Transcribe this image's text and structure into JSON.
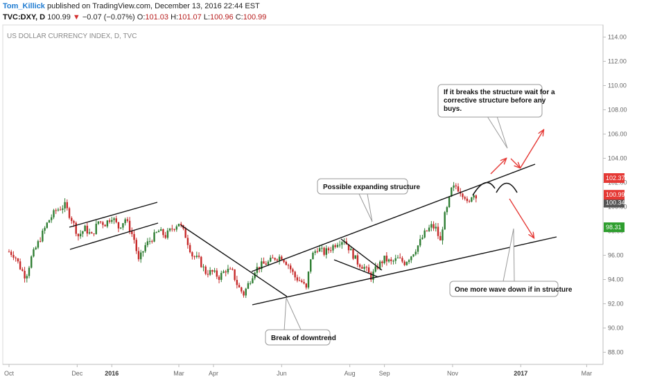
{
  "header": {
    "author": "Tom_Killick",
    "published": "published on TradingView.com, December 13, 2016 22:44 EST",
    "symbol": "TVC:DXY, D",
    "last": "100.99",
    "change_arrow": "▼",
    "change": "−0.07 (−0.07%)",
    "open_label": "O:",
    "open": "101.03",
    "high_label": "H:",
    "high": "101.07",
    "low_label": "L:",
    "low": "100.96",
    "close_label": "C:",
    "close": "100.99"
  },
  "chart_data": {
    "type": "candlestick",
    "title": "US DOLLAR CURRENCY INDEX, D, TVC",
    "ylim": [
      87,
      115
    ],
    "y_ticks": [
      "114.00",
      "112.00",
      "110.00",
      "108.00",
      "106.00",
      "104.00",
      "102.00",
      "100.00",
      "98.00",
      "96.00",
      "94.00",
      "92.00",
      "90.00",
      "88.00"
    ],
    "y_tick_values": [
      114,
      112,
      110,
      108,
      106,
      104,
      102,
      100,
      98,
      96,
      94,
      92,
      90,
      88
    ],
    "x_ticks": [
      {
        "label": "Oct",
        "day": 0
      },
      {
        "label": "Dec",
        "day": 61
      },
      {
        "label": "2016",
        "day": 92,
        "bold": true
      },
      {
        "label": "Mar",
        "day": 152
      },
      {
        "label": "Apr",
        "day": 183
      },
      {
        "label": "Jun",
        "day": 244
      },
      {
        "label": "Aug",
        "day": 305
      },
      {
        "label": "Sep",
        "day": 336
      },
      {
        "label": "Nov",
        "day": 397
      },
      {
        "label": "2017",
        "day": 458,
        "bold": true
      },
      {
        "label": "Mar",
        "day": 517
      }
    ],
    "price_path": [
      [
        0,
        96.3
      ],
      [
        5,
        96.0
      ],
      [
        10,
        95.0
      ],
      [
        15,
        94.2
      ],
      [
        20,
        95.8
      ],
      [
        28,
        97.4
      ],
      [
        35,
        98.8
      ],
      [
        42,
        99.7
      ],
      [
        50,
        100.1
      ],
      [
        56,
        99.0
      ],
      [
        62,
        97.6
      ],
      [
        68,
        98.2
      ],
      [
        74,
        97.6
      ],
      [
        80,
        98.8
      ],
      [
        86,
        98.6
      ],
      [
        92,
        99.2
      ],
      [
        98,
        98.3
      ],
      [
        104,
        99.0
      ],
      [
        108,
        98.2
      ],
      [
        112,
        97.3
      ],
      [
        116,
        95.5
      ],
      [
        122,
        96.8
      ],
      [
        128,
        97.4
      ],
      [
        134,
        98.0
      ],
      [
        140,
        97.6
      ],
      [
        146,
        98.2
      ],
      [
        152,
        98.7
      ],
      [
        158,
        97.6
      ],
      [
        164,
        96.0
      ],
      [
        170,
        95.6
      ],
      [
        176,
        94.6
      ],
      [
        182,
        94.6
      ],
      [
        188,
        94.2
      ],
      [
        194,
        94.8
      ],
      [
        200,
        94.6
      ],
      [
        205,
        93.4
      ],
      [
        210,
        92.8
      ],
      [
        214,
        93.6
      ],
      [
        220,
        94.8
      ],
      [
        226,
        95.2
      ],
      [
        232,
        95.4
      ],
      [
        238,
        95.8
      ],
      [
        244,
        95.9
      ],
      [
        250,
        95.2
      ],
      [
        256,
        94.2
      ],
      [
        262,
        93.8
      ],
      [
        266,
        93.2
      ],
      [
        270,
        95.8
      ],
      [
        276,
        96.6
      ],
      [
        282,
        96.2
      ],
      [
        288,
        96.6
      ],
      [
        294,
        97.1
      ],
      [
        300,
        97.3
      ],
      [
        306,
        96.3
      ],
      [
        312,
        95.4
      ],
      [
        318,
        95.0
      ],
      [
        324,
        94.2
      ],
      [
        330,
        95.1
      ],
      [
        336,
        95.7
      ],
      [
        342,
        95.4
      ],
      [
        348,
        95.7
      ],
      [
        354,
        95.4
      ],
      [
        360,
        96.0
      ],
      [
        366,
        96.8
      ],
      [
        372,
        97.8
      ],
      [
        378,
        98.4
      ],
      [
        382,
        98.2
      ],
      [
        386,
        97.1
      ],
      [
        389,
        99.0
      ],
      [
        392,
        99.8
      ],
      [
        396,
        101.4
      ],
      [
        400,
        101.7
      ],
      [
        404,
        101.3
      ],
      [
        408,
        100.9
      ],
      [
        411,
        99.9
      ],
      [
        414,
        101.0
      ],
      [
        418,
        100.99
      ]
    ],
    "annotations": [
      {
        "text": "Possible expanding structure"
      },
      {
        "text": "If it breaks the structure wait for a\ncorrective structure before any\nbuys."
      },
      {
        "text": "Break of downtrend"
      },
      {
        "text": "One more wave down if in structure"
      }
    ],
    "price_tags": [
      {
        "label": "102.37",
        "value": 102.37,
        "color": "#e53935"
      },
      {
        "label": "100.34",
        "value": 100.34,
        "color": "#555555"
      },
      {
        "label": "100.99",
        "value": 100.99,
        "color": "#e53935"
      },
      {
        "label": "98.31",
        "value": 98.31,
        "color": "#2e9e2e"
      }
    ],
    "up_color": "#2e7d32",
    "down_color": "#c62828",
    "line_color": "#111111",
    "arrow_color": "#e53935"
  }
}
